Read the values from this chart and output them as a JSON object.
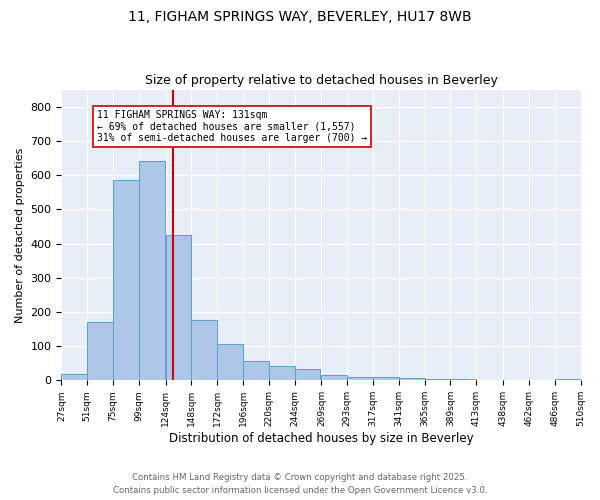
{
  "title1": "11, FIGHAM SPRINGS WAY, BEVERLEY, HU17 8WB",
  "title2": "Size of property relative to detached houses in Beverley",
  "xlabel": "Distribution of detached houses by size in Beverley",
  "ylabel": "Number of detached properties",
  "bin_starts": [
    27,
    51,
    75,
    99,
    124,
    148,
    172,
    196,
    220,
    244,
    269,
    293,
    317,
    341,
    365,
    389,
    413,
    438,
    462,
    486
  ],
  "bin_width": 24,
  "bar_heights": [
    18,
    170,
    585,
    640,
    425,
    175,
    105,
    57,
    42,
    32,
    15,
    10,
    9,
    7,
    5,
    3,
    2,
    0,
    0,
    5
  ],
  "bar_color": "#aec6e8",
  "bar_edge_color": "#5a9fd4",
  "vline_x": 131,
  "vline_color": "#cc0000",
  "annotation_text": "11 FIGHAM SPRINGS WAY: 131sqm\n← 69% of detached houses are smaller (1,557)\n31% of semi-detached houses are larger (700) →",
  "annotation_box_color": "#ffffff",
  "annotation_box_edge": "#cc0000",
  "ylim": [
    0,
    850
  ],
  "yticks": [
    0,
    100,
    200,
    300,
    400,
    500,
    600,
    700,
    800
  ],
  "tick_labels": [
    "27sqm",
    "51sqm",
    "75sqm",
    "99sqm",
    "124sqm",
    "148sqm",
    "172sqm",
    "196sqm",
    "220sqm",
    "244sqm",
    "269sqm",
    "293sqm",
    "317sqm",
    "341sqm",
    "365sqm",
    "389sqm",
    "413sqm",
    "438sqm",
    "462sqm",
    "486sqm",
    "510sqm"
  ],
  "footer1": "Contains HM Land Registry data © Crown copyright and database right 2025.",
  "footer2": "Contains public sector information licensed under the Open Government Licence v3.0.",
  "background_color": "#e8eef7",
  "fig_background": "#ffffff",
  "title_fontsize": 10,
  "subtitle_fontsize": 9
}
